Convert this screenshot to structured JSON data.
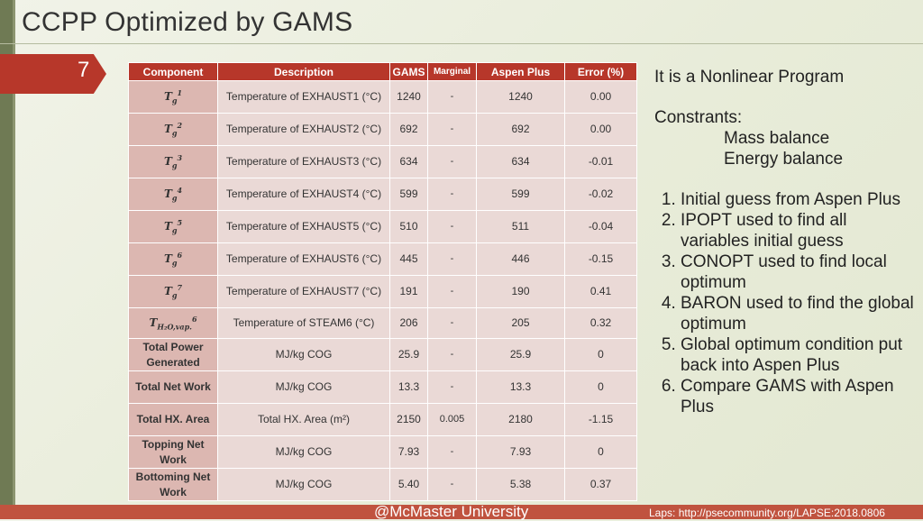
{
  "title": "CCPP Optimized by GAMS",
  "slide_number": "7",
  "table": {
    "headers": [
      "Component",
      "Description",
      "GAMS",
      "Marginal",
      "Aspen Plus",
      "Error (%)"
    ],
    "rows": [
      {
        "component": "T_g^1",
        "description": "Temperature of EXHAUST1 (°C)",
        "gams": "1240",
        "marginal": "-",
        "aspen": "1240",
        "error": "0.00"
      },
      {
        "component": "T_g^2",
        "description": "Temperature of EXHAUST2 (°C)",
        "gams": "692",
        "marginal": "-",
        "aspen": "692",
        "error": "0.00"
      },
      {
        "component": "T_g^3",
        "description": "Temperature of EXHAUST3 (°C)",
        "gams": "634",
        "marginal": "-",
        "aspen": "634",
        "error": "-0.01"
      },
      {
        "component": "T_g^4",
        "description": "Temperature of EXHAUST4 (°C)",
        "gams": "599",
        "marginal": "-",
        "aspen": "599",
        "error": "-0.02"
      },
      {
        "component": "T_g^5",
        "description": "Temperature of EXHAUST5 (°C)",
        "gams": "510",
        "marginal": "-",
        "aspen": "511",
        "error": "-0.04"
      },
      {
        "component": "T_g^6",
        "description": "Temperature of EXHAUST6 (°C)",
        "gams": "445",
        "marginal": "-",
        "aspen": "446",
        "error": "-0.15"
      },
      {
        "component": "T_g^7",
        "description": "Temperature of EXHAUST7 (°C)",
        "gams": "191",
        "marginal": "-",
        "aspen": "190",
        "error": "0.41"
      },
      {
        "component": "T_H2O,vap.^6",
        "description": "Temperature of STEAM6 (°C)",
        "gams": "206",
        "marginal": "-",
        "aspen": "205",
        "error": "0.32"
      },
      {
        "component": "Total Power Generated",
        "description": "MJ/kg COG",
        "gams": "25.9",
        "marginal": "-",
        "aspen": "25.9",
        "error": "0"
      },
      {
        "component": "Total Net Work",
        "description": "MJ/kg COG",
        "gams": "13.3",
        "marginal": "-",
        "aspen": "13.3",
        "error": "0"
      },
      {
        "component": "Total HX. Area",
        "description": "Total HX. Area (m²)",
        "gams": "2150",
        "marginal": "0.005",
        "aspen": "2180",
        "error": "-1.15"
      },
      {
        "component": "Topping Net Work",
        "description": "MJ/kg COG",
        "gams": "7.93",
        "marginal": "-",
        "aspen": "7.93",
        "error": "0"
      },
      {
        "component": "Bottoming Net Work",
        "description": "MJ/kg COG",
        "gams": "5.40",
        "marginal": "-",
        "aspen": "5.38",
        "error": "0.37"
      }
    ]
  },
  "right_panel": {
    "intro": "It is a Nonlinear Program",
    "constraints_label": "Constrants:",
    "constraints": [
      "Mass balance",
      "Energy balance"
    ],
    "steps": [
      "Initial guess from Aspen Plus",
      "IPOPT used to find all variables initial guess",
      "CONOPT used to find local optimum",
      "BARON used to find the global optimum",
      "Global optimum condition put back into Aspen Plus",
      "Compare GAMS with Aspen Plus"
    ]
  },
  "footer": "@McMaster University",
  "credit": "Laps: http://psecommunity.org/LAPSE:2018.0806",
  "colors": {
    "accent": "#b7372a",
    "row_bg": "#ead9d6",
    "first_col_bg": "#dcb7b1"
  }
}
